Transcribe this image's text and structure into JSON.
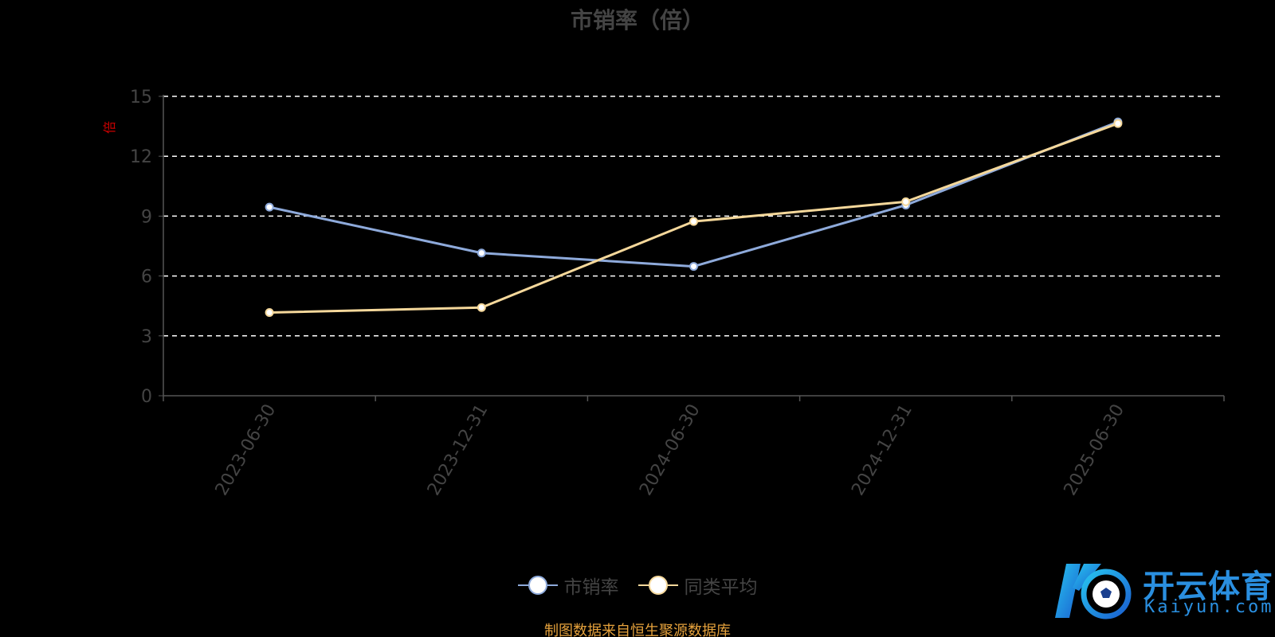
{
  "chart_data": {
    "type": "line",
    "title": "市销率（倍）",
    "ylabel": "倍",
    "categories": [
      "2023-06-30",
      "2023-12-31",
      "2024-06-30",
      "2024-12-31",
      "2025-06-30"
    ],
    "ylim": [
      0,
      15
    ],
    "yticks": [
      0,
      3,
      6,
      9,
      12,
      15
    ],
    "grid": true,
    "legend_position": "bottom",
    "series": [
      {
        "name": "市销率",
        "values": [
          9.45,
          7.15,
          6.48,
          9.55,
          13.72
        ],
        "color": "#8eaadb"
      },
      {
        "name": "同类平均",
        "values": [
          4.17,
          4.42,
          8.73,
          9.72,
          13.64
        ],
        "color": "#f5d89b"
      }
    ]
  },
  "source_note": "制图数据来自恒生聚源数据库",
  "watermark": {
    "text_cn": "开云体育",
    "text_en": "Kaiyun.com",
    "icon": "soccer-ball-logo-icon"
  }
}
